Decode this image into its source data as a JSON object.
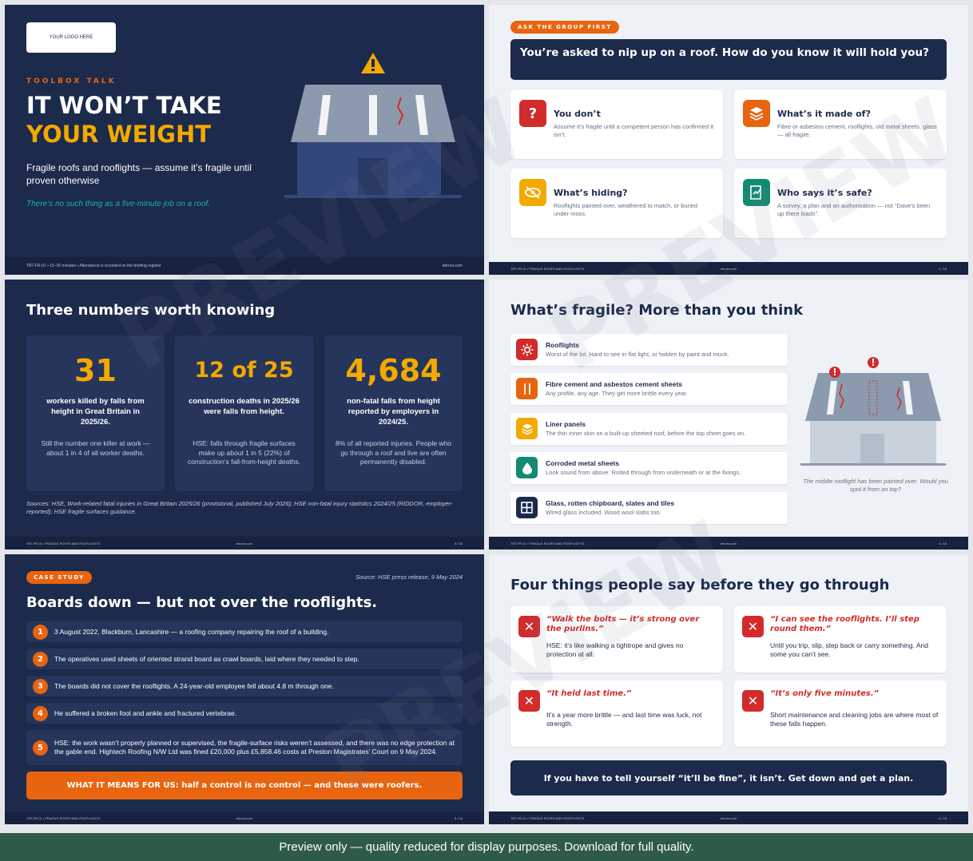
{
  "slide1": {
    "logo": "YOUR LOGO HERE",
    "kicker": "TOOLBOX TALK",
    "title_line1": "IT WON’T TAKE",
    "title_line2": "YOUR WEIGHT",
    "subtitle": "Fragile roofs and rooflights — assume it’s fragile until proven otherwise",
    "tagline": "There’s no such thing as a five-minute job on a roof.",
    "footer_left": "TBT-FR-01  •  15–20 minutes  •  Attendance is recorded on the briefing register",
    "footer_right": "ebrora.com"
  },
  "slide2": {
    "pill": "ASK THE GROUP FIRST",
    "question": "You’re asked to nip up on a roof. How do you know it will hold you?",
    "cards": [
      {
        "title": "You don’t",
        "desc": "Assume it’s fragile until a competent person has confirmed it isn’t.",
        "icon": "question-icon",
        "color": "#d12b2b"
      },
      {
        "title": "What’s it made of?",
        "desc": "Fibre or asbestos cement, rooflights, old metal sheets, glass — all fragile.",
        "icon": "layers-icon",
        "color": "#e8640f"
      },
      {
        "title": "What’s hiding?",
        "desc": "Rooflights painted over, weathered to match, or buried under moss.",
        "icon": "eye-off-icon",
        "color": "#f2a900"
      },
      {
        "title": "Who says it’s safe?",
        "desc": "A survey, a plan and an authorisation — not “Dave’s been up there loads”.",
        "icon": "signed-document-icon",
        "color": "#138a72"
      }
    ],
    "footer_left": "TBT-FR-01  •  FRAGILE ROOFS AND ROOFLIGHTS",
    "footer_center": "ebrora.com",
    "footer_right": "2 / 16"
  },
  "slide3": {
    "title": "Three numbers worth knowing",
    "stats": [
      {
        "number": "31",
        "label": "workers killed by falls from height in Great Britain in 2025/26.",
        "desc": "Still the number one killer at work — about 1 in 4 of all worker deaths."
      },
      {
        "number": "12 of 25",
        "label": "construction deaths in 2025/26 were falls from height.",
        "desc": "HSE: falls through fragile surfaces make up about 1 in 5 (22%) of construction’s fall-from-height deaths."
      },
      {
        "number": "4,684",
        "label": "non-fatal falls from height reported by employers in 2024/25.",
        "desc": "8% of all reported injuries. People who go through a roof and live are often permanently disabled."
      }
    ],
    "sources": "Sources: HSE, Work-related fatal injuries in Great Britain 2025/26 (provisional, published July 2026); HSE non-fatal injury statistics 2024/25 (RIDDOR, employer-reported); HSE fragile surfaces guidance.",
    "footer_left": "TBT-FR-01  •  FRAGILE ROOFS AND ROOFLIGHTS",
    "footer_center": "ebrora.com",
    "footer_right": "3 / 16"
  },
  "slide4": {
    "title": "What’s fragile? More than you think",
    "items": [
      {
        "title": "Rooflights",
        "desc": "Worst of the lot. Hard to see in flat light, or hidden by paint and muck.",
        "icon": "sun-icon",
        "color": "#d12b2b"
      },
      {
        "title": "Fibre cement and asbestos cement sheets",
        "desc": "Any profile, any age. They get more brittle every year.",
        "icon": "corrugated-sheet-icon",
        "color": "#e8640f"
      },
      {
        "title": "Liner panels",
        "desc": "The thin inner skin on a built-up sheeted roof, before the top sheet goes on.",
        "icon": "layers-icon",
        "color": "#f2a900"
      },
      {
        "title": "Corroded metal sheets",
        "desc": "Look sound from above. Rotted through from underneath or at the fixings.",
        "icon": "drop-icon",
        "color": "#138a72"
      },
      {
        "title": "Glass, rotten chipboard, slates and tiles",
        "desc": "Wired glass included. Wood wool slabs too.",
        "icon": "window-grid-icon",
        "color": "#1c2a4b"
      }
    ],
    "caption": "The middle rooflight has been painted over. Would you spot it from on top?",
    "footer_left": "TBT-FR-01  •  FRAGILE ROOFS AND ROOFLIGHTS",
    "footer_center": "ebrora.com",
    "footer_right": "4 / 16"
  },
  "slide5": {
    "pill": "CASE STUDY",
    "source": "Source: HSE press release, 9 May 2024",
    "title": "Boards down — but not over the rooflights.",
    "steps": [
      {
        "num": "1",
        "text": "3 August 2022, Blackburn, Lancashire — a roofing company repairing the roof of a building."
      },
      {
        "num": "2",
        "text": "The operatives used sheets of oriented strand board as crawl boards, laid where they needed to step."
      },
      {
        "num": "3",
        "text": "The boards did not cover the rooflights. A 24-year-old employee fell about 4.8 m through one."
      },
      {
        "num": "4",
        "text": "He suffered a broken foot and ankle and fractured vertebrae."
      },
      {
        "num": "5",
        "text": "HSE: the work wasn’t properly planned or supervised, the fragile-surface risks weren’t assessed, and there was no edge protection at the gable end. Hightech Roofing N/W Ltd was fined £20,000 plus £5,858.46 costs at Preston Magistrates’ Court on 9 May 2024."
      }
    ],
    "meaning": "WHAT IT MEANS FOR US:  half a control is no control — and these were roofers.",
    "footer_left": "TBT-FR-01  •  FRAGILE ROOFS AND ROOFLIGHTS",
    "footer_center": "ebrora.com",
    "footer_right": "5 / 16"
  },
  "slide6": {
    "title": "Four things people say before they go through",
    "sayings": [
      {
        "quote": "“Walk the bolts — it’s strong over the purlins.”",
        "desc": "HSE: it’s like walking a tightrope and gives no protection at all."
      },
      {
        "quote": "“I can see the rooflights. I’ll step round them.”",
        "desc": "Until you trip, slip, step back or carry something. And some you can’t see."
      },
      {
        "quote": "“It held last time.”",
        "desc": "It’s a year more brittle — and last time was luck, not strength."
      },
      {
        "quote": "“It’s only five minutes.”",
        "desc": "Short maintenance and cleaning jobs are where most of these falls happen."
      }
    ],
    "bottom": "If you have to tell yourself “it’ll be fine”, it isn’t. Get down and get a plan.",
    "footer_left": "TBT-FR-01  •  FRAGILE ROOFS AND ROOFLIGHTS",
    "footer_center": "ebrora.com",
    "footer_right": "6 / 16"
  },
  "watermark": "PREVIEW",
  "banner": "Preview only — quality reduced for display purposes. Download for full quality."
}
